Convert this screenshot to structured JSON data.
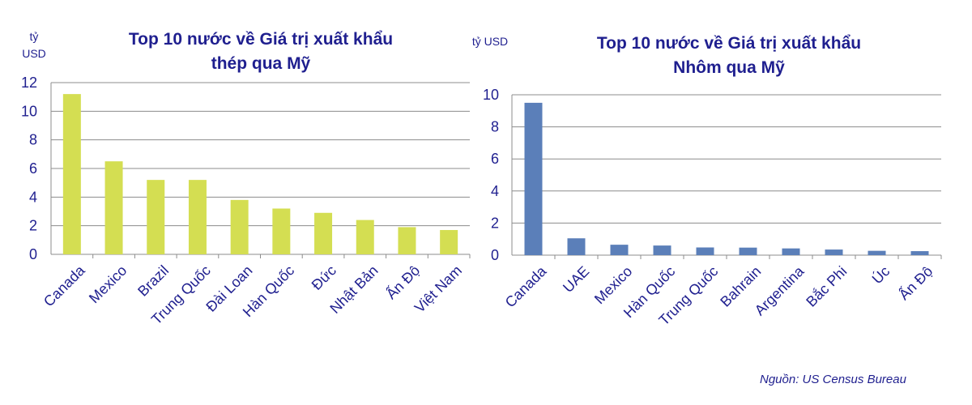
{
  "source_note": "Nguồn:  US Census Bureau",
  "chart_data": [
    {
      "type": "bar",
      "title_lines": [
        "Top 10 nước về Giá trị xuất khẩu",
        "thép qua Mỹ"
      ],
      "unit_lines": [
        "tỷ",
        "USD"
      ],
      "categories": [
        "Canada",
        "Mexico",
        "Brazil",
        "Trung Quốc",
        "Đài Loan",
        "Hàn Quốc",
        "Đức",
        "Nhật Bản",
        "Ấn Độ",
        "Việt Nam"
      ],
      "values": [
        11.2,
        6.5,
        5.2,
        5.2,
        3.8,
        3.2,
        2.9,
        2.4,
        1.9,
        1.7
      ],
      "ylim": [
        0,
        12
      ],
      "yticks": [
        0,
        2,
        4,
        6,
        8,
        10,
        12
      ],
      "color": "#d4de52",
      "grid": true
    },
    {
      "type": "bar",
      "title_lines": [
        "Top 10 nước về Giá trị xuất khẩu",
        "Nhôm qua Mỹ"
      ],
      "unit_lines": [
        "tỷ USD"
      ],
      "categories": [
        "Canada",
        "UAE",
        "Mexico",
        "Hàn Quốc",
        "Trung Quốc",
        "Bahrain",
        "Argentina",
        "Bắc Phi",
        "Úc",
        "Ấn Độ"
      ],
      "values": [
        9.5,
        1.05,
        0.65,
        0.6,
        0.48,
        0.47,
        0.42,
        0.35,
        0.27,
        0.25
      ],
      "ylim": [
        0,
        10
      ],
      "yticks": [
        0,
        2,
        4,
        6,
        8,
        10
      ],
      "color": "#5b7fb9",
      "grid": true
    }
  ]
}
